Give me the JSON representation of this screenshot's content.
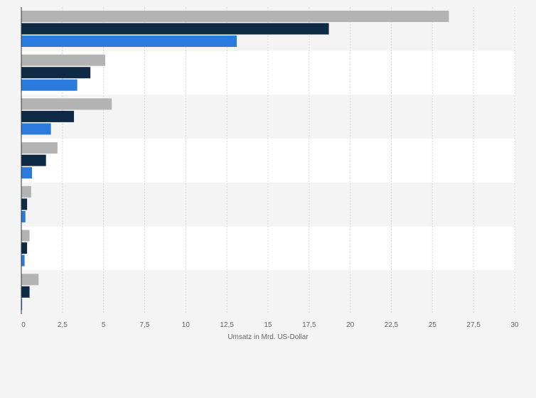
{
  "chart_data": {
    "type": "bar",
    "orientation": "horizontal",
    "title": "",
    "xlabel": "Umsatz in Mrd. US-Dollar",
    "ylabel": "",
    "xlim": [
      0,
      30
    ],
    "ticks": [
      0,
      2.5,
      5,
      7.5,
      10,
      12.5,
      15,
      17.5,
      20,
      22.5,
      25,
      27.5,
      30
    ],
    "tick_labels": [
      "0",
      "2,5",
      "5",
      "7,5",
      "10",
      "12,5",
      "15",
      "17,5",
      "20",
      "22,5",
      "25",
      "27,5",
      "30"
    ],
    "grid": true,
    "legend": "none visible",
    "categories": [
      "",
      "",
      "",
      "",
      "",
      "",
      ""
    ],
    "series": [
      {
        "name": "",
        "color": "#b3b3b3",
        "values": [
          26,
          5.1,
          5.5,
          2.2,
          0.6,
          0.5,
          1.05
        ]
      },
      {
        "name": "",
        "color": "#0f2a45",
        "values": [
          18.7,
          4.2,
          3.2,
          1.5,
          0.35,
          0.35,
          0.5
        ]
      },
      {
        "name": "",
        "color": "#2b7bde",
        "values": [
          13.1,
          3.4,
          1.8,
          0.65,
          0.25,
          0.2,
          0.05
        ]
      }
    ],
    "colors": {
      "band_light": "#ffffff",
      "band_dark": "#f4f4f4",
      "grid": "#d7d7d7",
      "axis": "#333333",
      "text": "#666666"
    }
  }
}
